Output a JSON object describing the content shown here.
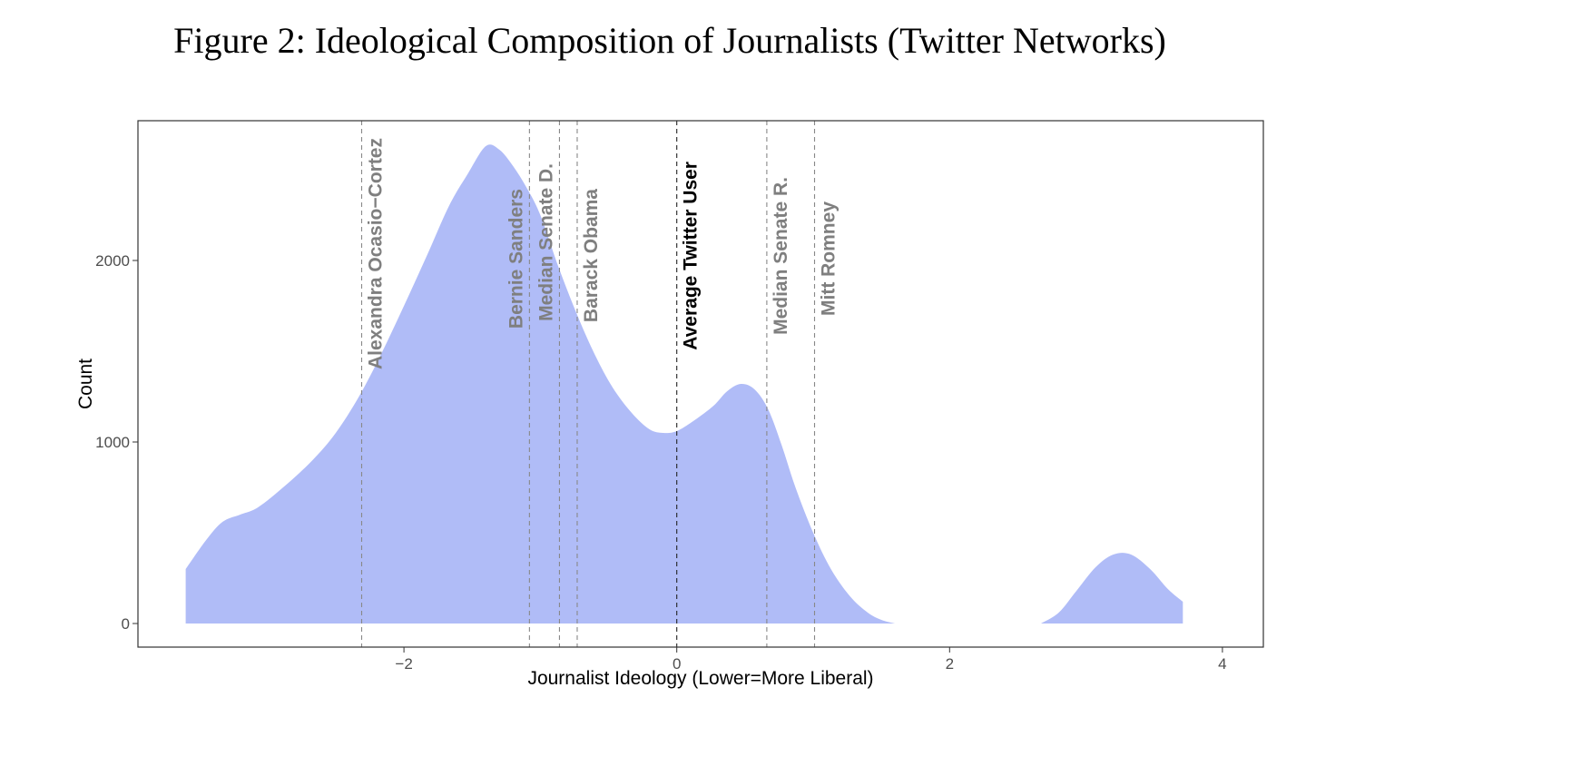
{
  "chart_data": {
    "type": "area",
    "title": "Figure 2: Ideological Composition of Journalists (Twitter Networks)",
    "xlabel": "Journalist Ideology (Lower=More Liberal)",
    "ylabel": "Count",
    "xlim": [
      -3.95,
      4.3
    ],
    "ylim": [
      -130,
      2770
    ],
    "x_ticks": [
      -2,
      0,
      2,
      4
    ],
    "x_tick_labels": [
      "−2",
      "0",
      "2",
      "4"
    ],
    "y_ticks": [
      0,
      1000,
      2000
    ],
    "y_tick_labels": [
      "0",
      "1000",
      "2000"
    ],
    "grid": false,
    "fill_color": "#b0bcf7",
    "series": [
      {
        "name": "Journalists",
        "segments": [
          {
            "x": [
              -3.6,
              -3.45,
              -3.33,
              -3.2,
              -3.07,
              -2.87,
              -2.67,
              -2.5,
              -2.33,
              -2.17,
              -2.0,
              -1.83,
              -1.67,
              -1.53,
              -1.4,
              -1.3,
              -1.2,
              -1.1,
              -1.0,
              -0.87,
              -0.73,
              -0.6,
              -0.47,
              -0.33,
              -0.2,
              -0.1,
              0.0,
              0.13,
              0.27,
              0.37,
              0.47,
              0.57,
              0.67,
              0.77,
              0.87,
              1.0,
              1.13,
              1.27,
              1.4,
              1.5,
              1.6
            ],
            "y": [
              300,
              460,
              560,
              600,
              640,
              760,
              900,
              1050,
              1250,
              1480,
              1750,
              2030,
              2300,
              2480,
              2630,
              2610,
              2520,
              2400,
              2250,
              1970,
              1700,
              1480,
              1300,
              1160,
              1070,
              1050,
              1060,
              1120,
              1200,
              1280,
              1320,
              1290,
              1180,
              980,
              750,
              500,
              300,
              150,
              60,
              20,
              0
            ]
          },
          {
            "x": [
              2.67,
              2.8,
              2.93,
              3.07,
              3.2,
              3.33,
              3.47,
              3.6,
              3.71
            ],
            "y": [
              0,
              60,
              180,
              310,
              380,
              380,
              300,
              190,
              120
            ]
          }
        ]
      }
    ],
    "reference_lines": [
      {
        "label": "Alexandra Ocasio−Cortez",
        "x": -2.31,
        "color": "#7f7f7f"
      },
      {
        "label": "Bernie Sanders",
        "x": -1.08,
        "color": "#7f7f7f"
      },
      {
        "label": "Median Senate D.",
        "x": -0.86,
        "color": "#7f7f7f"
      },
      {
        "label": "Barack Obama",
        "x": -0.73,
        "color": "#7f7f7f"
      },
      {
        "label": "Average Twitter User",
        "x": 0.0,
        "color": "#000000"
      },
      {
        "label": "Median Senate R.",
        "x": 0.66,
        "color": "#7f7f7f"
      },
      {
        "label": "Mitt Romney",
        "x": 1.01,
        "color": "#7f7f7f"
      }
    ]
  }
}
